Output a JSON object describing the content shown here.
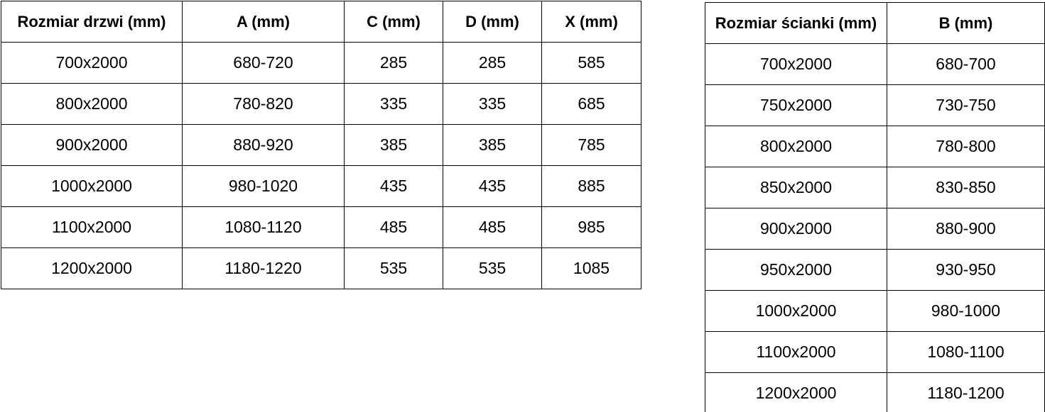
{
  "colors": {
    "background": "#ffffff",
    "border": "#000000",
    "text": "#000000"
  },
  "door_table": {
    "headers": [
      "Rozmiar drzwi (mm)",
      "A (mm)",
      "C (mm)",
      "D (mm)",
      "X (mm)"
    ],
    "rows": [
      [
        "700x2000",
        "680-720",
        "285",
        "285",
        "585"
      ],
      [
        "800x2000",
        "780-820",
        "335",
        "335",
        "685"
      ],
      [
        "900x2000",
        "880-920",
        "385",
        "385",
        "785"
      ],
      [
        "1000x2000",
        "980-1020",
        "435",
        "435",
        "885"
      ],
      [
        "1100x2000",
        "1080-1120",
        "485",
        "485",
        "985"
      ],
      [
        "1200x2000",
        "1180-1220",
        "535",
        "535",
        "1085"
      ]
    ]
  },
  "wall_table": {
    "headers": [
      "Rozmiar ścianki (mm)",
      "B (mm)"
    ],
    "rows": [
      [
        "700x2000",
        "680-700"
      ],
      [
        "750x2000",
        "730-750"
      ],
      [
        "800x2000",
        "780-800"
      ],
      [
        "850x2000",
        "830-850"
      ],
      [
        "900x2000",
        "880-900"
      ],
      [
        "950x2000",
        "930-950"
      ],
      [
        "1000x2000",
        "980-1000"
      ],
      [
        "1100x2000",
        "1080-1100"
      ],
      [
        "1200x2000",
        "1180-1200"
      ]
    ]
  }
}
